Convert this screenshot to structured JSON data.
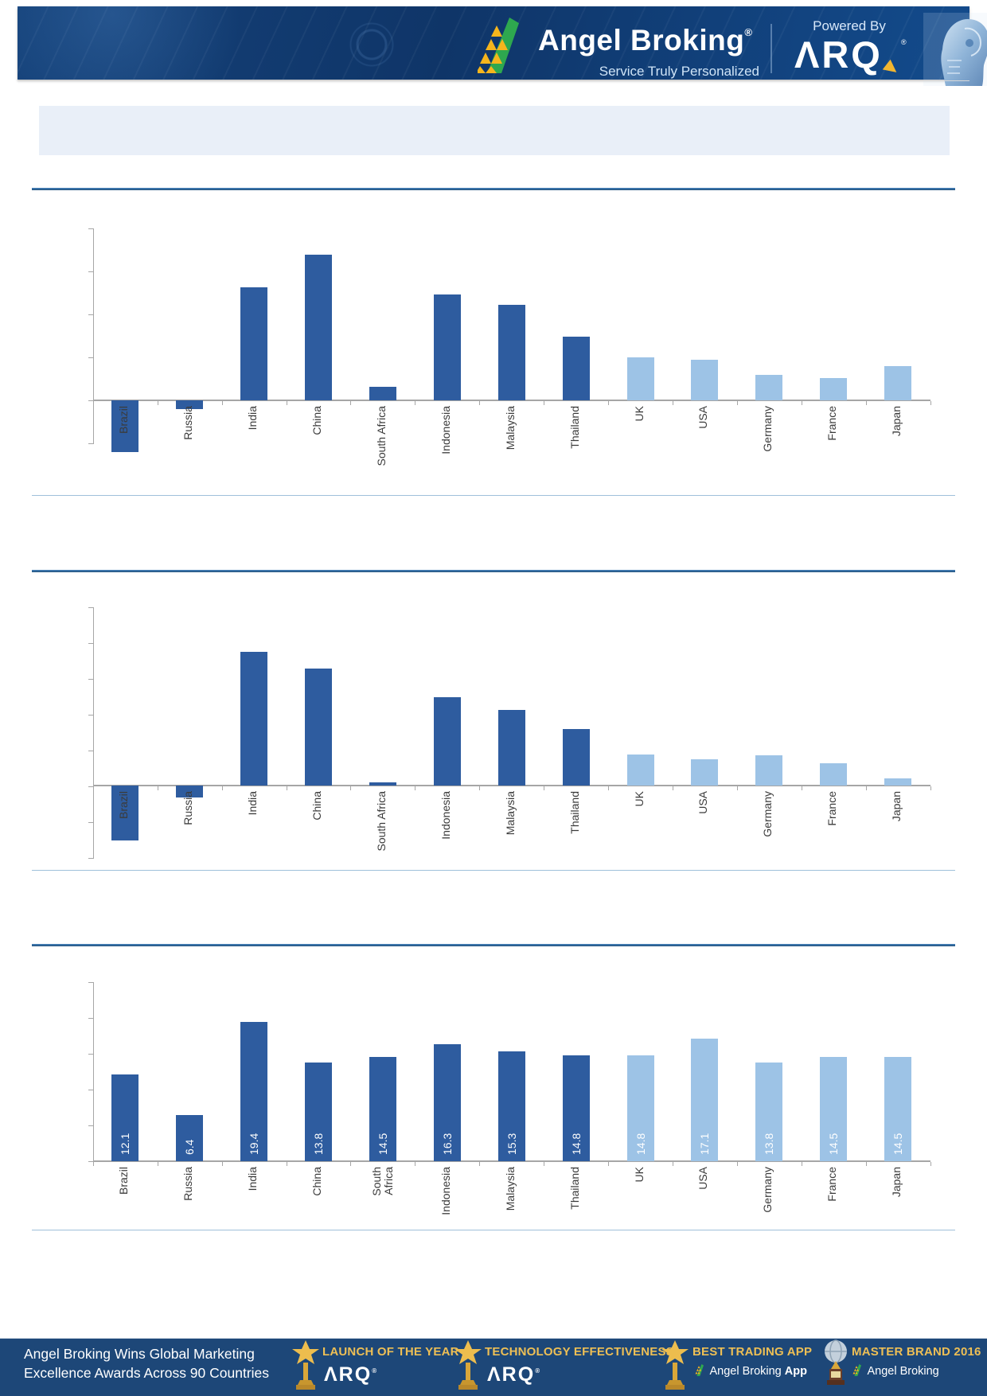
{
  "header": {
    "brand": "Angel Broking",
    "brand_reg": "®",
    "tagline": "Service Truly Personalized",
    "powered_by": "Powered By",
    "arq_text": "ARQ",
    "arq_display": "ΛRQ",
    "arq_reg": "®",
    "colors": {
      "band": "#0f3568",
      "logo_yellow": "#f5b51d",
      "logo_green": "#2ea84f",
      "arq_arrow_gold": "#f2b630"
    }
  },
  "title_banner": {
    "text": ""
  },
  "chart_style": {
    "dark_bar": "#2e5c9f",
    "light_bar": "#9dc3e6",
    "axis": "#a6a6a6",
    "category_label_color": "#3b3b3b",
    "value_label_color": "#ffffff",
    "dark_series_count": 8
  },
  "chart_data": [
    {
      "type": "bar",
      "title": "",
      "note": "y-axis has tick marks but no numeric labels; values estimated in gridline units",
      "categories": [
        "Brazil",
        "Russia",
        "India",
        "China",
        "South Africa",
        "Indonesia",
        "Malaysia",
        "Thailand",
        "UK",
        "USA",
        "Germany",
        "France",
        "Japan"
      ],
      "values": [
        -1.2,
        -0.2,
        2.63,
        3.39,
        0.31,
        2.46,
        2.22,
        1.48,
        1.0,
        0.94,
        0.59,
        0.52,
        0.8
      ],
      "ylim": [
        -1,
        4
      ],
      "grid": false,
      "legend": false,
      "data_labels": false
    },
    {
      "type": "bar",
      "title": "",
      "note": "y-axis has tick marks but no numeric labels; values estimated in gridline units",
      "categories": [
        "Brazil",
        "Russia",
        "India",
        "China",
        "South Africa",
        "Indonesia",
        "Malaysia",
        "Thailand",
        "UK",
        "USA",
        "Germany",
        "France",
        "Japan"
      ],
      "values": [
        -1.53,
        -0.33,
        3.73,
        3.27,
        0.08,
        2.47,
        2.11,
        1.58,
        0.87,
        0.73,
        0.84,
        0.62,
        0.2
      ],
      "ylim": [
        -2,
        5
      ],
      "grid": false,
      "legend": false,
      "data_labels": false
    },
    {
      "type": "bar",
      "title": "",
      "categories": [
        "Brazil",
        "Russia",
        "India",
        "China",
        "South Africa",
        "Indonesia",
        "Malaysia",
        "Thailand",
        "UK",
        "USA",
        "Germany",
        "France",
        "Japan"
      ],
      "values": [
        12.1,
        6.4,
        19.4,
        13.8,
        14.5,
        16.3,
        15.3,
        14.8,
        14.8,
        17.1,
        13.8,
        14.5,
        14.5
      ],
      "data_labels": [
        "12.1",
        "6.4",
        "19.4",
        "13.8",
        "14.5",
        "16.3",
        "15.3",
        "14.8",
        "14.8",
        "17.1",
        "13.8",
        "14.5",
        "14.5"
      ],
      "ylim": [
        0,
        25
      ],
      "grid": false,
      "legend": false,
      "wrap_south_africa": true
    }
  ],
  "footer": {
    "headline_line1": "Angel Broking Wins Global Marketing",
    "headline_line2": "Excellence Awards Across 90 Countries",
    "awards": [
      {
        "title": "LAUNCH OF THE YEAR",
        "subtitle_display": "ΛRQ",
        "subtitle_text": "ARQ",
        "subtitle_reg": "®",
        "icon": "star-trophy"
      },
      {
        "title": "TECHNOLOGY EFFECTIVENESS",
        "subtitle_display": "ΛRQ",
        "subtitle_text": "ARQ",
        "subtitle_reg": "®",
        "icon": "star-trophy"
      },
      {
        "title": "BEST TRADING APP",
        "subtitle_text": "Angel Broking",
        "subtitle_bold": "App",
        "icon": "star-trophy",
        "has_mini_logo": true
      },
      {
        "title": "MASTER BRAND 2016",
        "subtitle_text": "Angel Broking",
        "icon": "globe-trophy",
        "has_mini_logo": true
      }
    ],
    "colors": {
      "band": "#1d4778",
      "gold": "#eebf55"
    }
  }
}
